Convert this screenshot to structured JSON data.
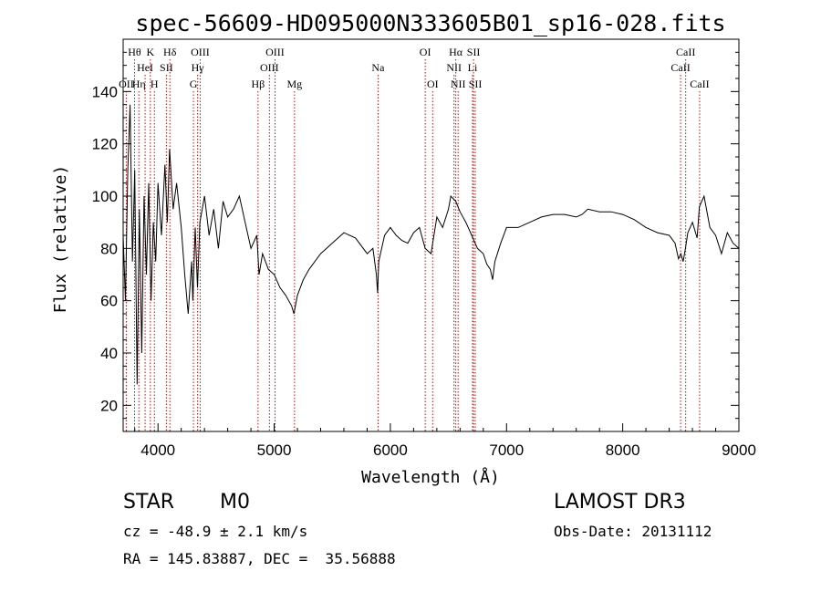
{
  "chart_data": {
    "type": "line",
    "title": "spec-56609-HD095000N333605B01_sp16-028.fits",
    "xlabel": "Wavelength (Å)",
    "ylabel": "Flux (relative)",
    "xlim": [
      3700,
      9000
    ],
    "ylim": [
      10,
      160
    ],
    "x_ticks": [
      4000,
      5000,
      6000,
      7000,
      8000,
      9000
    ],
    "y_ticks": [
      20,
      40,
      60,
      80,
      100,
      120,
      140
    ],
    "grid": false,
    "series": [
      {
        "name": "flux",
        "x": [
          3700,
          3720,
          3740,
          3760,
          3780,
          3800,
          3820,
          3840,
          3860,
          3880,
          3900,
          3920,
          3940,
          3960,
          3980,
          4000,
          4030,
          4060,
          4080,
          4100,
          4130,
          4160,
          4200,
          4230,
          4260,
          4290,
          4300,
          4320,
          4340,
          4360,
          4400,
          4440,
          4480,
          4520,
          4560,
          4600,
          4650,
          4700,
          4750,
          4800,
          4850,
          4870,
          4900,
          4950,
          5000,
          5050,
          5100,
          5150,
          5170,
          5200,
          5250,
          5300,
          5400,
          5500,
          5600,
          5700,
          5800,
          5850,
          5880,
          5890,
          5900,
          5950,
          6000,
          6050,
          6100,
          6150,
          6200,
          6250,
          6300,
          6350,
          6400,
          6450,
          6500,
          6520,
          6563,
          6600,
          6650,
          6700,
          6750,
          6800,
          6830,
          6860,
          6880,
          6900,
          6950,
          7000,
          7100,
          7200,
          7300,
          7400,
          7500,
          7600,
          7650,
          7700,
          7800,
          7900,
          8000,
          8100,
          8200,
          8300,
          8400,
          8450,
          8480,
          8500,
          8520,
          8540,
          8560,
          8600,
          8640,
          8660,
          8700,
          8750,
          8800,
          8850,
          8900,
          8950,
          9000
        ],
        "values": [
          85,
          60,
          110,
          135,
          75,
          110,
          28,
          95,
          40,
          100,
          70,
          105,
          60,
          90,
          75,
          105,
          85,
          112,
          90,
          118,
          95,
          105,
          88,
          70,
          55,
          75,
          60,
          88,
          65,
          90,
          100,
          85,
          95,
          80,
          98,
          92,
          95,
          100,
          90,
          80,
          85,
          70,
          78,
          72,
          70,
          65,
          62,
          58,
          55,
          62,
          68,
          72,
          78,
          82,
          86,
          84,
          78,
          80,
          70,
          63,
          75,
          85,
          88,
          85,
          83,
          82,
          86,
          88,
          80,
          78,
          92,
          88,
          95,
          100,
          98,
          94,
          90,
          85,
          80,
          78,
          74,
          72,
          68,
          75,
          82,
          88,
          88,
          90,
          92,
          93,
          93,
          92,
          93,
          95,
          94,
          94,
          93,
          91,
          88,
          86,
          85,
          82,
          76,
          78,
          75,
          80,
          86,
          90,
          84,
          96,
          100,
          88,
          85,
          78,
          86,
          82,
          80
        ]
      }
    ],
    "line_markers": [
      {
        "name": "OII",
        "x": 3727,
        "row": 3
      },
      {
        "name": "Hθ",
        "x": 3798,
        "row": 1
      },
      {
        "name": "Hη",
        "x": 3835,
        "row": 3
      },
      {
        "name": "HeI",
        "x": 3889,
        "row": 2
      },
      {
        "name": "K",
        "x": 3934,
        "row": 1
      },
      {
        "name": "H",
        "x": 3969,
        "row": 3
      },
      {
        "name": "SII",
        "x": 4072,
        "row": 2
      },
      {
        "name": "Hδ",
        "x": 4102,
        "row": 1
      },
      {
        "name": "G",
        "x": 4305,
        "row": 3
      },
      {
        "name": "Hγ",
        "x": 4341,
        "row": 2
      },
      {
        "name": "OIII",
        "x": 4363,
        "row": 1
      },
      {
        "name": "Hβ",
        "x": 4861,
        "row": 3
      },
      {
        "name": "OIII",
        "x": 4959,
        "row": 2
      },
      {
        "name": "OIII",
        "x": 5007,
        "row": 1
      },
      {
        "name": "Mg",
        "x": 5175,
        "row": 3
      },
      {
        "name": "Na",
        "x": 5894,
        "row": 2
      },
      {
        "name": "OI",
        "x": 6300,
        "row": 1
      },
      {
        "name": "OI",
        "x": 6364,
        "row": 3
      },
      {
        "name": "NII",
        "x": 6548,
        "row": 2
      },
      {
        "name": "Hα",
        "x": 6563,
        "row": 1
      },
      {
        "name": "NII",
        "x": 6583,
        "row": 3
      },
      {
        "name": "Li",
        "x": 6707,
        "row": 2
      },
      {
        "name": "SII",
        "x": 6716,
        "row": 1
      },
      {
        "name": "SII",
        "x": 6731,
        "row": 3
      },
      {
        "name": "CaII",
        "x": 8498,
        "row": 2
      },
      {
        "name": "CaII",
        "x": 8542,
        "row": 1
      },
      {
        "name": "CaII",
        "x": 8662,
        "row": 3
      }
    ]
  },
  "info": {
    "class": "STAR",
    "subclass": "M0",
    "survey": "LAMOST DR3",
    "redshift": "cz = -48.9 ± 2.1 km/s",
    "obs_date": "Obs-Date: 20131112",
    "coords": "RA = 145.83887, DEC =  35.56888"
  },
  "colors": {
    "line": "#000000",
    "marker": "#c01010",
    "text": "#000000"
  }
}
